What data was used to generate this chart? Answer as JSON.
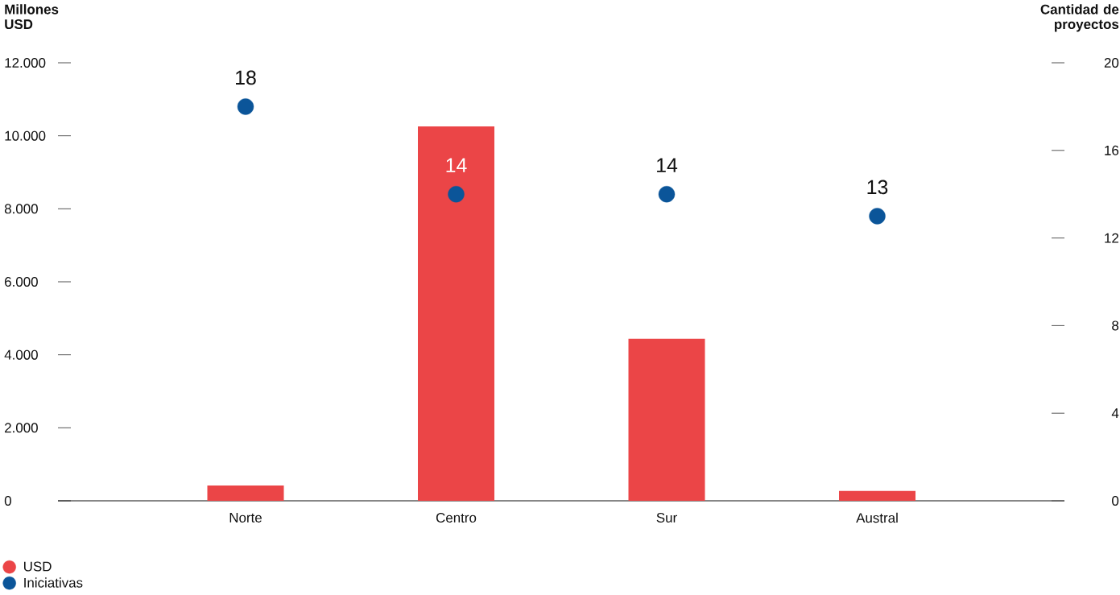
{
  "chart_data": {
    "type": "bar",
    "ylabel": "Millones USD",
    "y2label": "Cantidad de proyectos",
    "categories": [
      "Norte",
      "Centro",
      "Sur",
      "Austral"
    ],
    "series": [
      {
        "name": "USD",
        "color": "#eb4547",
        "values": [
          420,
          10260,
          4440,
          270
        ]
      },
      {
        "name": "Iniciativas",
        "type": "scatter",
        "axis": "y2",
        "color": "#0b5599",
        "values": [
          18,
          14,
          14,
          13
        ],
        "value_labels": [
          "18",
          "14",
          "14",
          "13"
        ]
      }
    ],
    "ylim": [
      0,
      12000
    ],
    "yticks": [
      0,
      {
        "value": 2000,
        "label": "2.000"
      },
      {
        "value": 4000,
        "label": "4.000"
      },
      {
        "value": 6000,
        "label": "6.000"
      },
      {
        "value": 8000,
        "label": "8.000"
      },
      {
        "value": 10000,
        "label": "10.000"
      },
      {
        "value": 12000,
        "label": "12.000"
      }
    ],
    "y2lim": [
      0,
      20
    ],
    "y2ticks": [
      0,
      4,
      8,
      12,
      16,
      20
    ],
    "legend": "bottom left"
  }
}
